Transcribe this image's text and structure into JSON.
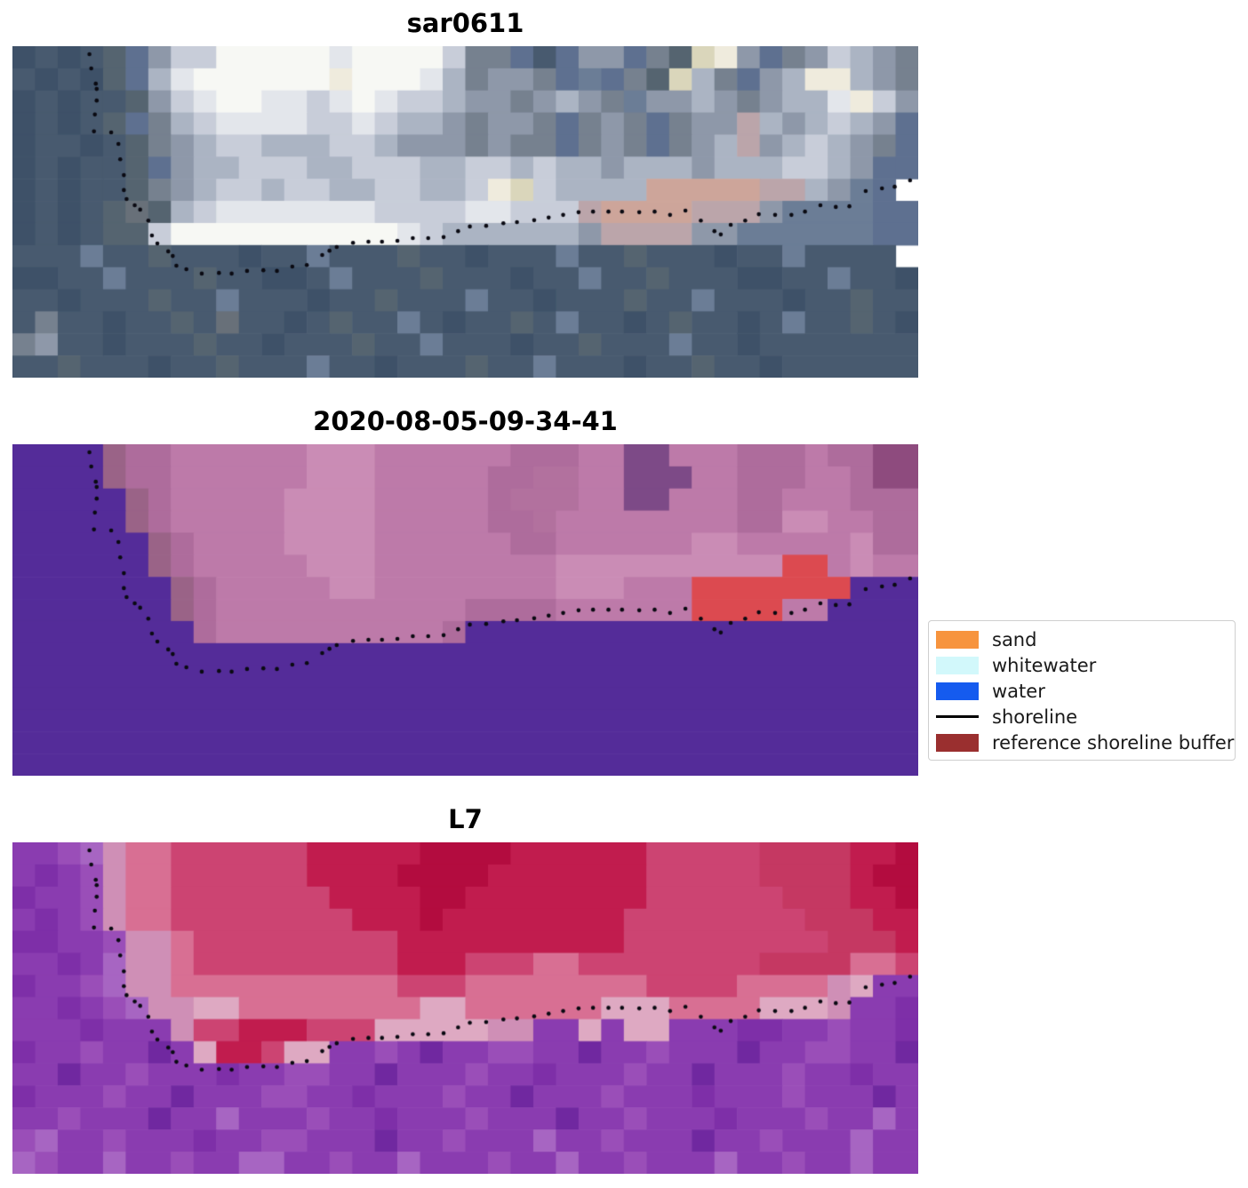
{
  "legend": {
    "items": [
      {
        "label": "sand",
        "color": "#f7943e",
        "swatch": "patch"
      },
      {
        "label": "whitewater",
        "color": "#d2f8fb",
        "swatch": "patch"
      },
      {
        "label": "water",
        "color": "#155bef",
        "swatch": "patch"
      },
      {
        "label": "shoreline",
        "color": "#000000",
        "swatch": "line"
      },
      {
        "label": "reference shoreline buffer",
        "color": "#9a2f2f",
        "swatch": "patch"
      }
    ]
  },
  "chart_data": {
    "type": "image-panels",
    "description": "Three stacked satellite image panels (RGB crop, classified image, false-color L7) sharing one mapped shoreline drawn as black dots; legend to the right of middle panel",
    "legend_position": "center-right",
    "panels": [
      {
        "title": "sar0611",
        "palette": {
          "a": "#3e5168",
          "b": "#485a6f",
          "c": "#556470",
          "d": "#5e7090",
          "e": "#76818f",
          "f": "#8e98a9",
          "g": "#abb4c3",
          "h": "#c8cdd9",
          "i": "#e3e6eb",
          "j": "#f7f8f4",
          "k": "#efebdd",
          "l": "#dad6bb",
          "m": "#cda59a",
          "n": "#bba5aa",
          "o": "#687079",
          "p": "#6b7d96"
        },
        "rows": [
          "a1b1a1b1c1d1f1h2j5i1j4h1e2d1b1d1f2d1e1c1l1k1f1d1e1f1h1g1f1e1",
          "b1a1b1a1c1d1g1i1j6k1j3i1g1e1f2e1d1p1d1e1c1l1g1e1d1f1g1k2g1f1e1",
          "a1b1a1b1b1c1f1h1i1j2i2h1i1j1i1h2g1f2e1f1g1f1e1p1f2g1f1e1f1g2i1k1h1f1",
          "a1b1a1b1c1d1e1g1h1i4h2i1h1g2f1e1f2e1d1e1f1e1d1e1f2n1g1f1g1h1g1f1d1",
          "a1b2a1b1c1e1f1g1h2g3h2g1f3e1f1e2d1e1f1e1d1e1f1g1n1f1g1h1g1f1e1d1",
          "a1b1a1b1b1c1d1f1g2h3g2h3g2h2g1h1g2f1g3f1g3h2g1f1d1d1",
          "a1b1a1b1b1c1e1f1g1h2g1h2g2h2g2h1k1l1h1g4m5n2g1f1p1d1",
          "a1b1a1b1c1o1c1g1h1i7h4i2h3n1m4n3f1p4d2",
          "a1b1a1b1c2h1j10i1h1g6f1n4f2p6d2",
          "b3p1b2c1b3a1b2p1b3c1b2a1b3p1b2c1b3a1b2p1b4",
          "a2b2p1b3c1b2a2b1p1b3c1b3a1b2p1b2c1b3a2b2p1b2a1",
          "b2a1b3c1b2p1b3a1b2c1b3p1b2a1b3c1b2p1b3a1b2c1b2",
          "b1e1b2a1b2c1b1o1b2a1b1c1b2p1b1a1b2c1b1p1b2a1b1c1b2a1b1p1b2c1b1a1",
          "e1f1b2a1b3c1b2a1b3c1b2p1b3a1b2c1b3p1b2a1b7",
          "b2c1b3a1b2c1b3p1b2a1b3c1b2p1b3a1b2c1b2a1b6"
        ]
      },
      {
        "title": "2020-08-05-09-34-41",
        "palette": {
          "A": "#542c99",
          "B": "#9a6387",
          "C": "#ae6c9c",
          "D": "#bd7aa9",
          "E": "#ca8cb5",
          "G": "#7d4a87",
          "H": "#8e4b7e",
          "I": "#dc4a50",
          "J": "#b2719e"
        },
        "rows": [
          "A4B1C2D6E3D6C3D2G2D3C3D1C2H2",
          "A4B1C2D6E3D5C2J2D2G3D2C3D2C1H2",
          "A5B1C1D5E4D5C1J3D2G2D3C2D3C3",
          "A5B1C1D5E4D5C2J1D8C2E2D2C2",
          "A6B1C1D4E4D6C2D6E2D5E1C2",
          "A6B1C1D5E3D8E10I2D1E1D2",
          "A7B1C1D5E2D8E3D3I7A3",
          "A7B1C1D11C4D6I4D2A4",
          "A8C1D10C1A20",
          "A40",
          "A40",
          "A40",
          "A40",
          "A40",
          "A40"
        ]
      },
      {
        "title": "L7",
        "palette": {
          "P": "#7e2fa8",
          "Q": "#8a3cb0",
          "R": "#9a4eb8",
          "S": "#a765c2",
          "T": "#7028a0",
          "U": "#cf8fb6",
          "V": "#d86f93",
          "W": "#cc4472",
          "X": "#c11c4e",
          "Y": "#b30c3f",
          "M": "#c53862",
          "Z": "#dea9c2"
        },
        "rows": [
          "Q2R1S1U1V2W6X5Y4X6W5M4X2Y1",
          "Q1P1Q1R1U1V2W6X4Y4X7W5M4X1Y2",
          "P1Q2R1U1V2W7X4Y2X8W6M3X2Y1",
          "Q1P1Q1R1U1V2W8X3Y1X8W8M3X2",
          "P2Q2R1U2V1W9X10W9M3X1",
          "Q2P1Q1S1U2V1W9X3W3V2W8M4V2W1",
          "P1Q2R1S1U2V10W3V8W4V4U1Z1Q2",
          "Q2P1Q1R1S1U2Z2V8Z2V6Z3V4Z3U1Q2P1",
          "Q3P1Q3U1W2X3W3Z5U2Q2Z1Q1Z2Q3P2Q2R1Q2P1",
          "P1Q2R1Q2T1Q1Z1X2W1Z2Q2R1Q1T1Q2R2Q2T1Q2R1Q3T1Q2R2Q2T1",
          "Q2T1Q2R1Q3P1Q2R2Q2T1Q3R1Q2P1Q3R1Q2T1Q3R1Q2P1Q2",
          "P1Q3R1Q2T1Q3R2Q2P1Q3R1Q2T1Q3R1Q3P1Q3R1Q3T1Q1",
          "Q2R1Q3T1Q2S1Q3R1Q2P1Q3R1Q3T1Q2R1Q3P1Q3R1Q2S1Q1",
          "R1S1Q2R1Q3P1Q2R2Q3T1Q2R1Q3S1Q2R1Q3T1Q2R1Q3S1Q2",
          "S1R1Q2S1Q2R1Q2S2Q2R1Q2S1Q3R1Q2S1Q2R1Q3S1Q2R1Q2S1Q2"
        ]
      }
    ],
    "shoreline": {
      "marker": "dot",
      "color": "#0a0a12",
      "points": [
        [
          0.085,
          0.024
        ],
        [
          0.087,
          0.067
        ],
        [
          0.092,
          0.113
        ],
        [
          0.093,
          0.129
        ],
        [
          0.093,
          0.164
        ],
        [
          0.091,
          0.206
        ],
        [
          0.09,
          0.257
        ],
        [
          0.109,
          0.26
        ],
        [
          0.117,
          0.295
        ],
        [
          0.119,
          0.341
        ],
        [
          0.123,
          0.389
        ],
        [
          0.123,
          0.434
        ],
        [
          0.126,
          0.461
        ],
        [
          0.135,
          0.48
        ],
        [
          0.141,
          0.493
        ],
        [
          0.15,
          0.526
        ],
        [
          0.154,
          0.571
        ],
        [
          0.16,
          0.595
        ],
        [
          0.172,
          0.619
        ],
        [
          0.177,
          0.633
        ],
        [
          0.181,
          0.662
        ],
        [
          0.192,
          0.673
        ],
        [
          0.209,
          0.686
        ],
        [
          0.228,
          0.684
        ],
        [
          0.242,
          0.686
        ],
        [
          0.259,
          0.678
        ],
        [
          0.277,
          0.676
        ],
        [
          0.292,
          0.678
        ],
        [
          0.309,
          0.665
        ],
        [
          0.325,
          0.66
        ],
        [
          0.342,
          0.63
        ],
        [
          0.35,
          0.617
        ],
        [
          0.358,
          0.606
        ],
        [
          0.376,
          0.593
        ],
        [
          0.393,
          0.59
        ],
        [
          0.408,
          0.59
        ],
        [
          0.425,
          0.587
        ],
        [
          0.442,
          0.579
        ],
        [
          0.459,
          0.579
        ],
        [
          0.476,
          0.576
        ],
        [
          0.492,
          0.558
        ],
        [
          0.505,
          0.544
        ],
        [
          0.523,
          0.542
        ],
        [
          0.542,
          0.534
        ],
        [
          0.557,
          0.531
        ],
        [
          0.576,
          0.525
        ],
        [
          0.592,
          0.517
        ],
        [
          0.608,
          0.509
        ],
        [
          0.625,
          0.501
        ],
        [
          0.641,
          0.499
        ],
        [
          0.658,
          0.499
        ],
        [
          0.673,
          0.499
        ],
        [
          0.692,
          0.501
        ],
        [
          0.709,
          0.499
        ],
        [
          0.726,
          0.509
        ],
        [
          0.743,
          0.496
        ],
        [
          0.76,
          0.526
        ],
        [
          0.775,
          0.558
        ],
        [
          0.782,
          0.568
        ],
        [
          0.793,
          0.539
        ],
        [
          0.809,
          0.526
        ],
        [
          0.824,
          0.507
        ],
        [
          0.842,
          0.509
        ],
        [
          0.86,
          0.509
        ],
        [
          0.875,
          0.499
        ],
        [
          0.892,
          0.48
        ],
        [
          0.909,
          0.485
        ],
        [
          0.924,
          0.483
        ],
        [
          0.942,
          0.437
        ],
        [
          0.96,
          0.429
        ],
        [
          0.974,
          0.424
        ],
        [
          0.991,
          0.405
        ]
      ]
    }
  }
}
